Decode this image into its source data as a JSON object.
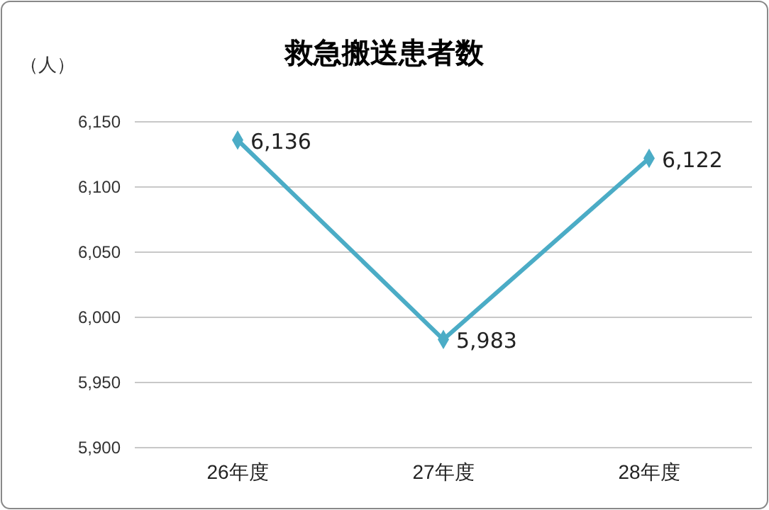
{
  "chart_data": {
    "type": "line",
    "title": "救急搬送患者数",
    "ylabel": "（人）",
    "categories": [
      "26年度",
      "27年度",
      "28年度"
    ],
    "series": [
      {
        "color": "#4bacc6",
        "values": [
          6136,
          5983,
          6122
        ]
      }
    ],
    "value_labels": [
      "6,136",
      "5,983",
      "6,122"
    ],
    "ylim": [
      5900,
      6150
    ],
    "yticks": [
      {
        "value": 5900,
        "label": "5,900"
      },
      {
        "value": 5950,
        "label": "5,950"
      },
      {
        "value": 6000,
        "label": "6,000"
      },
      {
        "value": 6050,
        "label": "6,050"
      },
      {
        "value": 6100,
        "label": "6,100"
      },
      {
        "value": 6150,
        "label": "6,150"
      }
    ],
    "grid": "y",
    "marker": "diamond",
    "line_style": "solid"
  }
}
